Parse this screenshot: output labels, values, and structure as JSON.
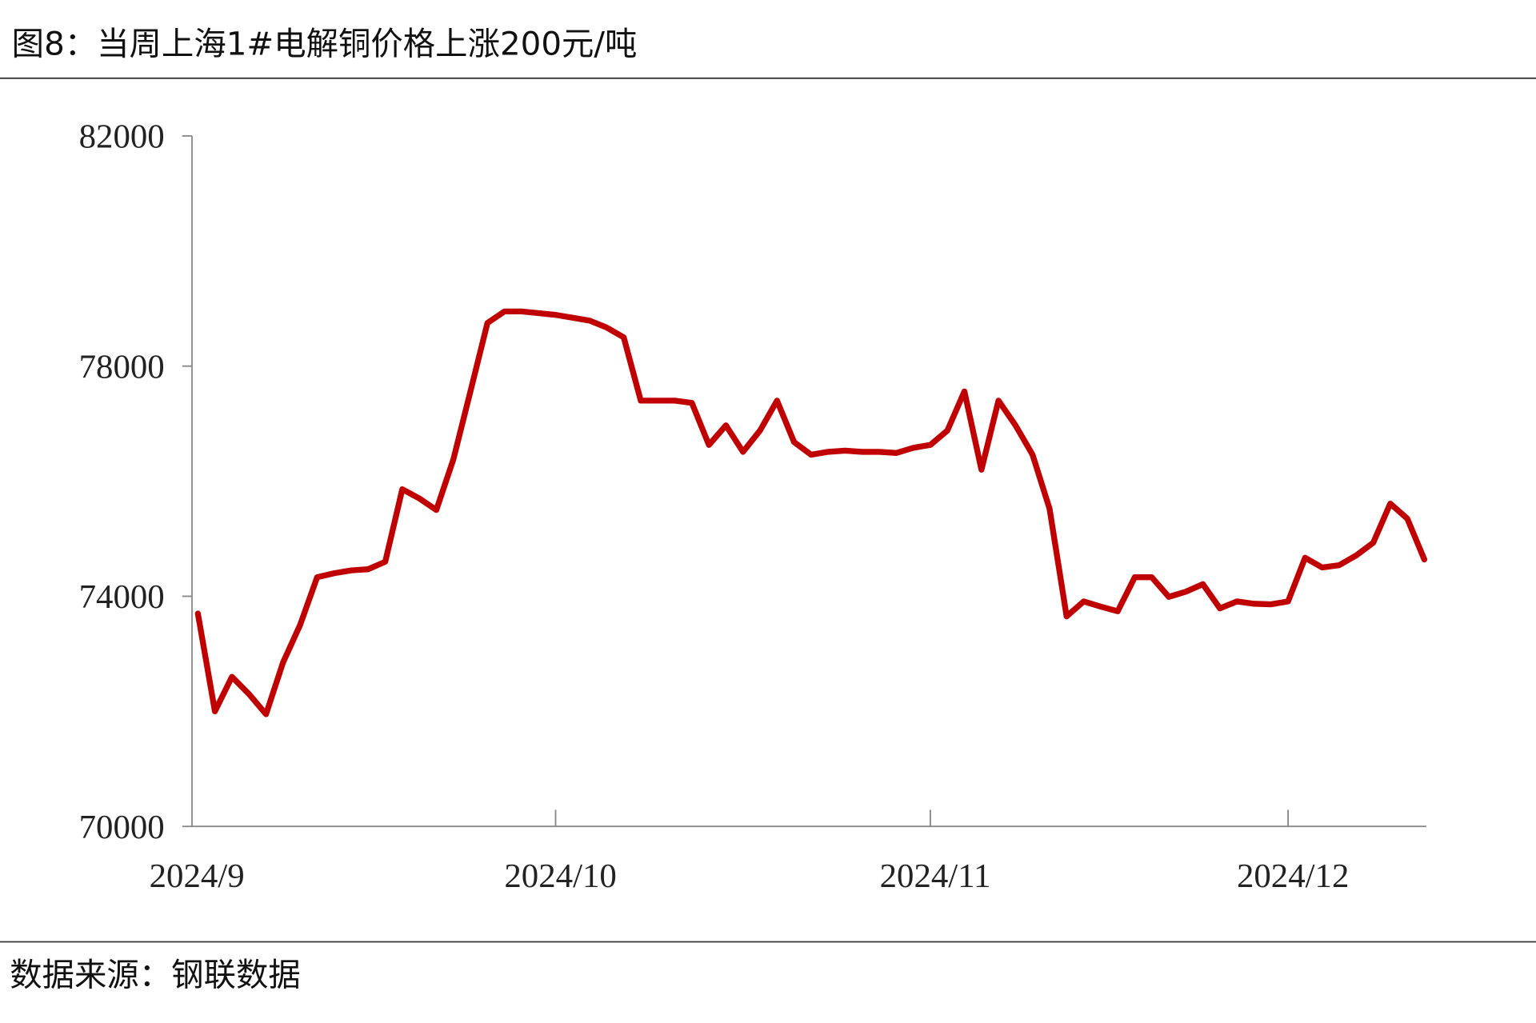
{
  "chart_data": {
    "type": "line",
    "title": "图8：当周上海1#电解铜价格上涨200元/吨",
    "source": "数据来源：钢联数据",
    "categories": [
      "2024/9",
      null,
      null,
      null,
      null,
      null,
      null,
      null,
      null,
      null,
      null,
      null,
      null,
      null,
      null,
      null,
      null,
      null,
      null,
      null,
      null,
      "2024/10",
      null,
      null,
      null,
      null,
      null,
      null,
      null,
      null,
      null,
      null,
      null,
      null,
      null,
      null,
      null,
      null,
      null,
      null,
      null,
      null,
      null,
      "2024/11",
      null,
      null,
      null,
      null,
      null,
      null,
      null,
      null,
      null,
      null,
      null,
      null,
      null,
      null,
      null,
      null,
      null,
      null,
      null,
      null,
      "2024/12",
      null,
      null,
      null,
      null,
      null,
      null,
      null,
      null
    ],
    "series": [
      {
        "color": "#c00000",
        "values": [
          73700,
          72000,
          72600,
          72300,
          71950,
          72850,
          73500,
          74330,
          74400,
          74450,
          74470,
          74600,
          75860,
          75700,
          75500,
          76380,
          77560,
          78750,
          78950,
          78950,
          78920,
          78890,
          78840,
          78790,
          78670,
          78500,
          77400,
          77400,
          77400,
          77360,
          76630,
          76970,
          76510,
          76880,
          77400,
          76680,
          76460,
          76510,
          76530,
          76510,
          76510,
          76490,
          76580,
          76630,
          76880,
          77560,
          76200,
          77400,
          76970,
          76460,
          75520,
          73650,
          73910,
          73820,
          73740,
          74330,
          74330,
          73990,
          74080,
          74210,
          73790,
          73910,
          73870,
          73860,
          73910,
          74670,
          74500,
          74540,
          74710,
          74930,
          75610,
          75350,
          74640
        ]
      }
    ],
    "ylim": [
      70000,
      82000
    ],
    "yticks": [
      70000,
      74000,
      78000,
      82000
    ],
    "grid": false
  }
}
